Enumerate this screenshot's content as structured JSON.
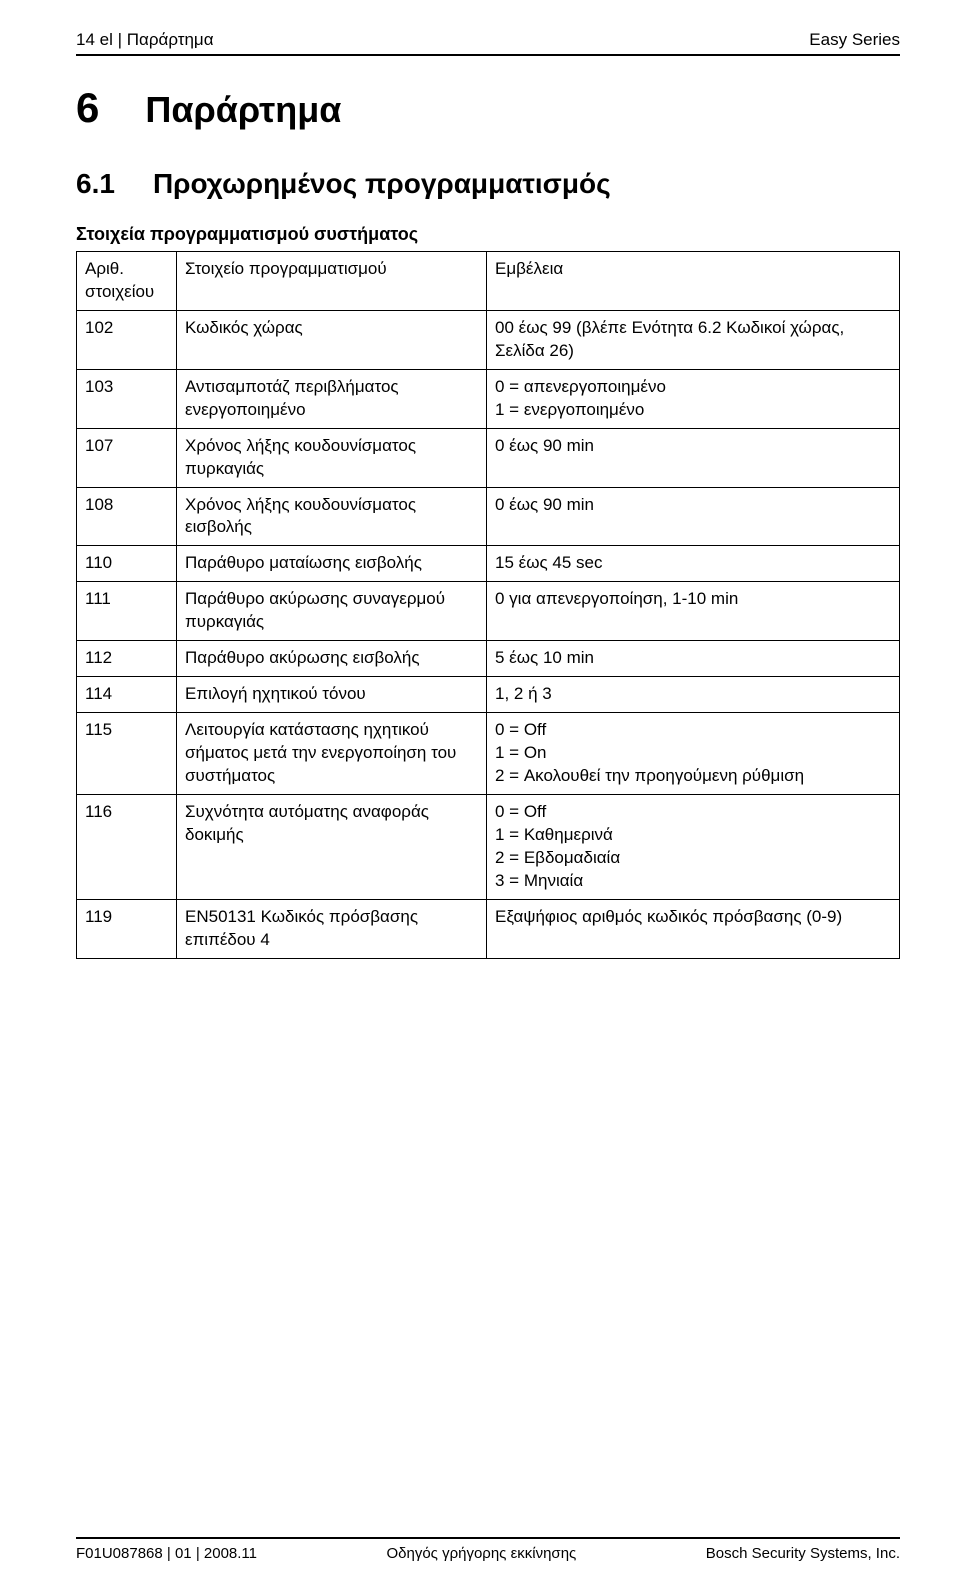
{
  "header": {
    "left": "14   el | Παράρτημα",
    "right": "Easy Series"
  },
  "chapter": {
    "number": "6",
    "title": "Παράρτημα"
  },
  "section": {
    "number": "6.1",
    "title": "Προχωρημένος προγραμματισμός"
  },
  "subheading": "Στοιχεία προγραμματισμού συστήματος",
  "table": {
    "columns": [
      "Αριθ. στοιχείου",
      "Στοιχείο προγραμματισμού",
      "Εμβέλεια"
    ],
    "rows": [
      {
        "num": "102",
        "item": "Κωδικός χώρας",
        "range": "00 έως 99 (βλέπε Ενότητα 6.2 Κωδικοί χώρας, Σελίδα 26)"
      },
      {
        "num": "103",
        "item": "Αντισαμποτάζ περιβλήματος ενεργοποιημένο",
        "range": "0 = απενεργοποιημένο\n1 = ενεργοποιημένο"
      },
      {
        "num": "107",
        "item": "Χρόνος λήξης κουδουνίσματος πυρκαγιάς",
        "range": "0 έως 90 min"
      },
      {
        "num": "108",
        "item": "Χρόνος λήξης κουδουνίσματος εισβολής",
        "range": "0 έως 90 min"
      },
      {
        "num": "110",
        "item": "Παράθυρο ματαίωσης εισβολής",
        "range": "15 έως 45 sec"
      },
      {
        "num": "111",
        "item": "Παράθυρο ακύρωσης συναγερμού πυρκαγιάς",
        "range": "0 για απενεργοποίηση, 1-10 min"
      },
      {
        "num": "112",
        "item": "Παράθυρο ακύρωσης εισβολής",
        "range": "5 έως 10 min"
      },
      {
        "num": "114",
        "item": "Επιλογή ηχητικού τόνου",
        "range": "1, 2 ή 3"
      },
      {
        "num": "115",
        "item": "Λειτουργία κατάστασης ηχητικού σήματος μετά την ενεργοποίηση του συστήματος",
        "range": "0 = Off\n1 = On\n2 = Ακολουθεί την προηγούμενη ρύθμιση"
      },
      {
        "num": "116",
        "item": "Συχνότητα αυτόματης αναφοράς δοκιμής",
        "range": "0 = Off\n1 = Καθημερινά\n2 = Εβδομαδιαία\n3 = Μηνιαία"
      },
      {
        "num": "119",
        "item": "EN50131 Κωδικός πρόσβασης επιπέδου 4",
        "range": "Εξαψήφιος αριθμός κωδικός πρόσβασης (0-9)"
      }
    ]
  },
  "footer": {
    "left": "F01U087868 | 01 | 2008.11",
    "center": "Οδηγός γρήγορης εκκίνησης",
    "right": "Bosch Security Systems, Inc."
  }
}
